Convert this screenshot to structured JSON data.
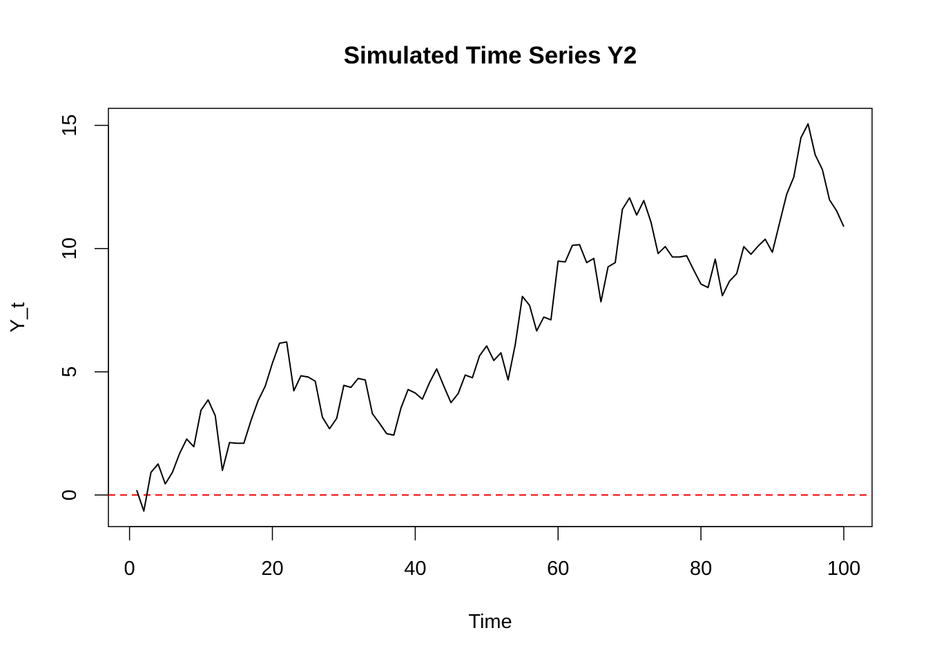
{
  "chart_data": {
    "type": "line",
    "title": "Simulated Time Series Y2",
    "xlabel": "Time",
    "ylabel": "Y_t",
    "xlim": [
      -2.96,
      103.96
    ],
    "ylim": [
      -1.28,
      15.69
    ],
    "xticks": [
      0,
      20,
      40,
      60,
      80,
      100
    ],
    "yticks": [
      0,
      5,
      10,
      15
    ],
    "xtick_labels": [
      "0",
      "20",
      "40",
      "60",
      "80",
      "100"
    ],
    "ytick_labels": [
      "0",
      "5",
      "10",
      "15"
    ],
    "grid": false,
    "hline": {
      "y": 0,
      "color": "#ff0000",
      "style": "dashed"
    },
    "series": [
      {
        "name": "Y2",
        "color": "#000000",
        "x_start": 1,
        "values": [
          0.2,
          -0.65,
          0.92,
          1.26,
          0.45,
          0.92,
          1.68,
          2.27,
          1.96,
          3.44,
          3.86,
          3.22,
          1.0,
          2.13,
          2.1,
          2.1,
          3.02,
          3.83,
          4.42,
          5.35,
          6.16,
          6.21,
          4.23,
          4.84,
          4.79,
          4.62,
          3.16,
          2.69,
          3.11,
          4.45,
          4.37,
          4.73,
          4.67,
          3.3,
          2.91,
          2.49,
          2.43,
          3.53,
          4.28,
          4.14,
          3.89,
          4.56,
          5.12,
          4.42,
          3.75,
          4.11,
          4.87,
          4.76,
          5.65,
          6.05,
          5.46,
          5.77,
          4.67,
          6.1,
          8.06,
          7.7,
          6.66,
          7.22,
          7.11,
          9.49,
          9.46,
          10.13,
          10.16,
          9.43,
          9.6,
          7.84,
          9.26,
          9.43,
          11.59,
          12.06,
          11.36,
          11.95,
          11.08,
          9.8,
          10.08,
          9.66,
          9.66,
          9.71,
          9.12,
          8.56,
          8.42,
          9.57,
          8.09,
          8.68,
          8.98,
          10.08,
          9.77,
          10.1,
          10.38,
          9.85,
          11.03,
          12.2,
          12.9,
          14.5,
          15.06,
          13.8,
          13.21,
          11.98,
          11.53,
          10.89
        ]
      }
    ]
  }
}
